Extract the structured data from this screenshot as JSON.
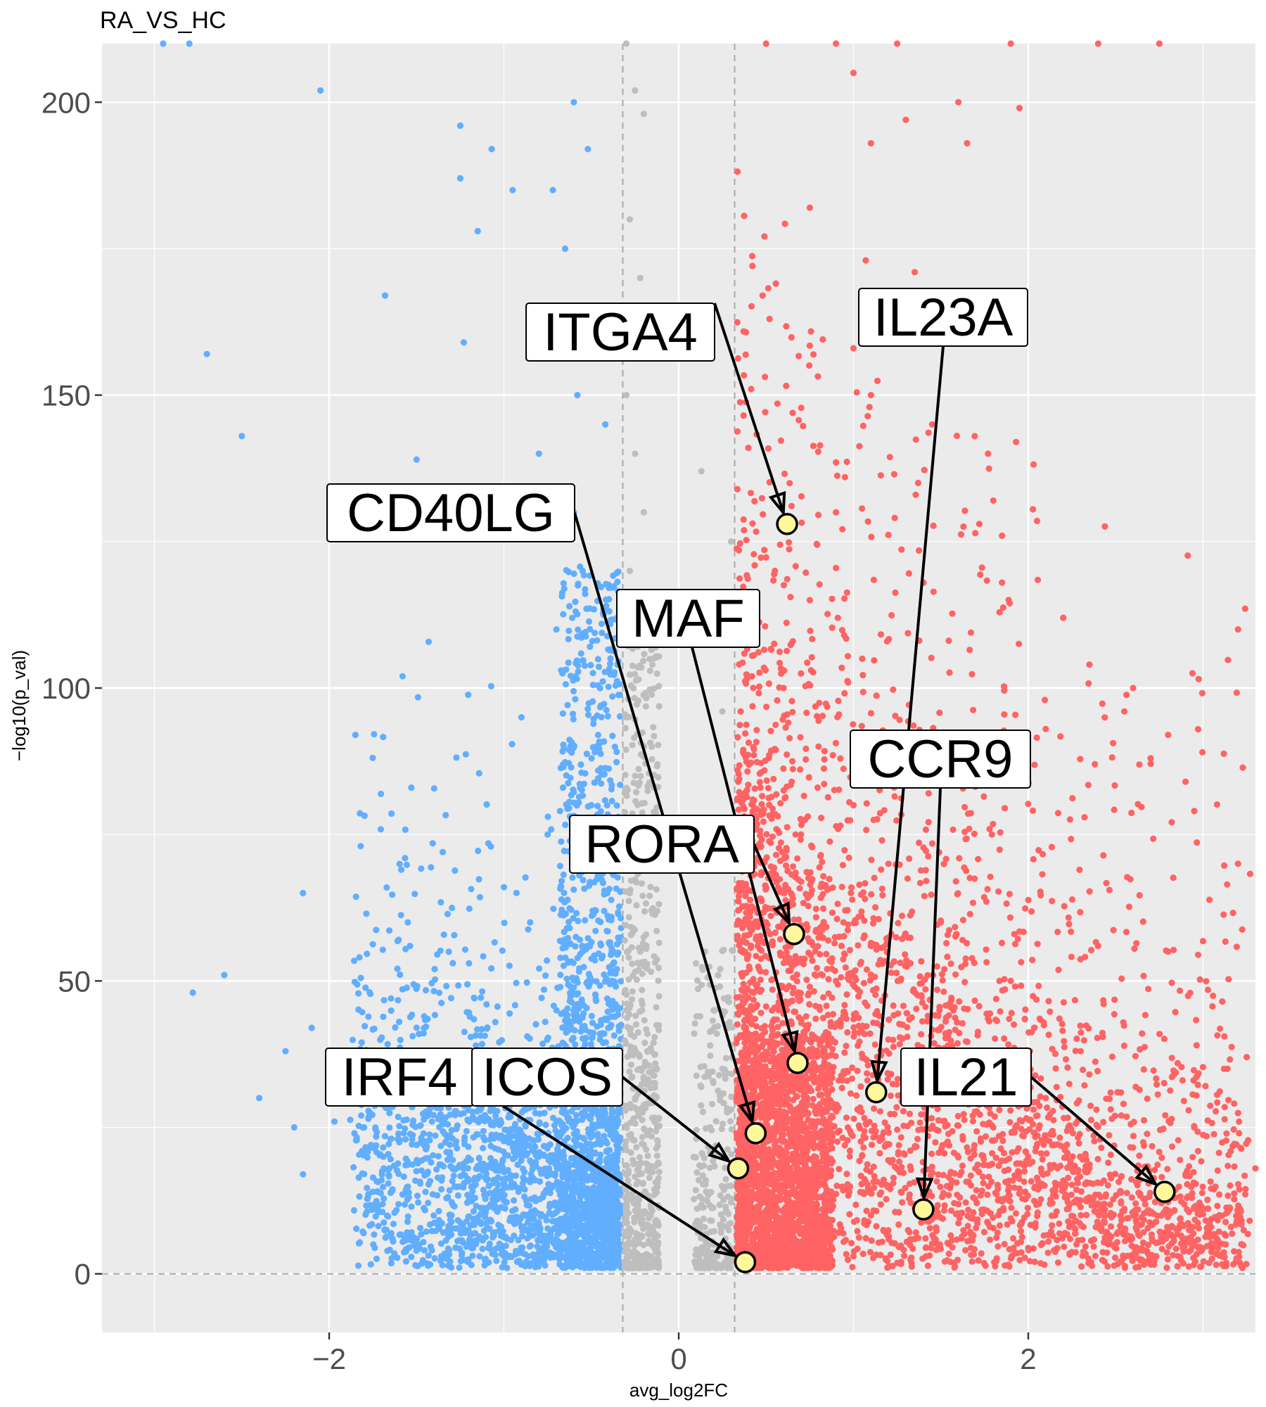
{
  "chart_data": {
    "type": "scatter",
    "title": "RA_VS_HC",
    "xlabel": "avg_log2FC",
    "ylabel": "−log10(p_val)",
    "xlim": [
      -3.3,
      3.3
    ],
    "ylim": [
      -10,
      210
    ],
    "x_ticks": [
      -2,
      0,
      2
    ],
    "x_tick_labels": [
      "−2",
      "0",
      "2"
    ],
    "y_ticks": [
      0,
      50,
      100,
      150,
      200
    ],
    "y_tick_labels": [
      "0",
      "50",
      "100",
      "150",
      "200"
    ],
    "grid": true,
    "thresholds": {
      "log2fc": [
        -0.32,
        0.32
      ],
      "pval": 0
    },
    "colors": {
      "down": "#61AEFF",
      "ns": "#BEBEBE",
      "up": "#FF6363",
      "panel": "#EBEBEB",
      "highlight_fill": "#FFF89A"
    },
    "sample_points": {
      "down": [
        [
          -2.95,
          210
        ],
        [
          -2.8,
          210
        ],
        [
          -2.05,
          202
        ],
        [
          -1.25,
          196
        ],
        [
          -1.07,
          192
        ],
        [
          -1.25,
          187
        ],
        [
          -0.95,
          185
        ],
        [
          -1.15,
          178
        ],
        [
          -1.68,
          167
        ],
        [
          -2.7,
          157
        ],
        [
          -1.23,
          159
        ],
        [
          -2.5,
          143
        ],
        [
          -1.5,
          139
        ],
        [
          -1.58,
          102
        ],
        [
          -1.85,
          92
        ],
        [
          -1.53,
          83
        ],
        [
          -1.82,
          73
        ],
        [
          -1.35,
          72
        ],
        [
          -2.15,
          65
        ],
        [
          -1.55,
          60
        ],
        [
          -2.6,
          51
        ],
        [
          -2.78,
          48
        ],
        [
          -2.1,
          42
        ],
        [
          -2.25,
          38
        ],
        [
          -2.4,
          30
        ],
        [
          -2.2,
          25
        ],
        [
          -2.15,
          17
        ],
        [
          -1.97,
          26
        ],
        [
          -1.2,
          53
        ],
        [
          -1.1,
          46
        ],
        [
          -0.8,
          140
        ],
        [
          -0.6,
          130
        ],
        [
          -0.55,
          120
        ],
        [
          -0.7,
          110
        ],
        [
          -0.45,
          100
        ],
        [
          -0.9,
          95
        ],
        [
          -0.62,
          90
        ],
        [
          -0.5,
          80
        ],
        [
          -0.75,
          75
        ],
        [
          -0.4,
          70
        ],
        [
          -1.0,
          66
        ],
        [
          -0.85,
          60
        ],
        [
          -0.55,
          55
        ],
        [
          -0.38,
          50
        ],
        [
          -0.7,
          45
        ],
        [
          -0.45,
          40
        ],
        [
          -1.3,
          38
        ],
        [
          -0.6,
          35
        ],
        [
          -0.95,
          30
        ],
        [
          -0.5,
          28
        ],
        [
          -0.36,
          24
        ],
        [
          -1.5,
          22
        ],
        [
          -0.8,
          20
        ],
        [
          -1.1,
          18
        ],
        [
          -0.55,
          15
        ],
        [
          -0.4,
          12
        ],
        [
          -1.7,
          16
        ],
        [
          -1.3,
          10
        ],
        [
          -0.9,
          8
        ],
        [
          -0.6,
          5
        ],
        [
          -0.35,
          3
        ],
        [
          -1.0,
          3
        ],
        [
          -0.7,
          160
        ],
        [
          -0.65,
          175
        ],
        [
          -0.6,
          200
        ],
        [
          -0.72,
          185
        ],
        [
          -0.52,
          192
        ],
        [
          -0.48,
          165
        ],
        [
          -0.58,
          150
        ],
        [
          -0.42,
          145
        ]
      ],
      "ns": [
        [
          -0.3,
          210
        ],
        [
          -0.25,
          202
        ],
        [
          -0.2,
          198
        ],
        [
          -0.28,
          180
        ],
        [
          -0.22,
          170
        ],
        [
          -0.3,
          150
        ],
        [
          -0.25,
          140
        ],
        [
          -0.2,
          130
        ],
        [
          -0.28,
          120
        ],
        [
          -0.15,
          104
        ],
        [
          -0.3,
          95
        ],
        [
          -0.25,
          85
        ],
        [
          -0.2,
          75
        ],
        [
          -0.28,
          65
        ],
        [
          -0.22,
          55
        ],
        [
          -0.3,
          45
        ],
        [
          -0.18,
          38
        ],
        [
          -0.25,
          30
        ],
        [
          -0.2,
          22
        ],
        [
          -0.3,
          15
        ],
        [
          -0.15,
          8
        ],
        [
          -0.25,
          3
        ],
        [
          0.15,
          55
        ],
        [
          0.2,
          45
        ],
        [
          0.25,
          35
        ],
        [
          0.18,
          25
        ],
        [
          0.28,
          15
        ],
        [
          0.12,
          8
        ],
        [
          0.22,
          3
        ],
        [
          0.13,
          137
        ],
        [
          0.25,
          96
        ],
        [
          0.3,
          125
        ],
        [
          0.2,
          5
        ],
        [
          0.1,
          2
        ]
      ],
      "up": [
        [
          0.5,
          210
        ],
        [
          0.9,
          210
        ],
        [
          1.25,
          210
        ],
        [
          1.9,
          210
        ],
        [
          2.4,
          210
        ],
        [
          2.75,
          210
        ],
        [
          1.0,
          205
        ],
        [
          1.95,
          199
        ],
        [
          1.6,
          200
        ],
        [
          1.3,
          197
        ],
        [
          1.65,
          193
        ],
        [
          1.1,
          193
        ],
        [
          0.75,
          182
        ],
        [
          1.07,
          173
        ],
        [
          1.35,
          171
        ],
        [
          1.18,
          166
        ],
        [
          0.48,
          167
        ],
        [
          0.52,
          163
        ],
        [
          1.12,
          161
        ],
        [
          1.0,
          158
        ],
        [
          1.37,
          135
        ],
        [
          1.1,
          150
        ],
        [
          1.45,
          145
        ],
        [
          1.77,
          140
        ],
        [
          1.93,
          142
        ],
        [
          1.8,
          132
        ],
        [
          1.72,
          128
        ],
        [
          1.85,
          126
        ],
        [
          0.9,
          130
        ],
        [
          1.4,
          118
        ],
        [
          1.85,
          118
        ],
        [
          2.2,
          112
        ],
        [
          3.2,
          110
        ],
        [
          2.35,
          104
        ],
        [
          2.55,
          96
        ],
        [
          2.1,
          93
        ],
        [
          2.6,
          100
        ],
        [
          2.8,
          92
        ],
        [
          2.7,
          88
        ],
        [
          2.9,
          84
        ],
        [
          2.95,
          79
        ],
        [
          3.2,
          70
        ],
        [
          2.8,
          55
        ],
        [
          3.12,
          35
        ],
        [
          3.25,
          37
        ],
        [
          3.3,
          18
        ],
        [
          2.95,
          25
        ],
        [
          2.9,
          17
        ],
        [
          2.3,
          38
        ],
        [
          2.1,
          30
        ],
        [
          1.9,
          50
        ],
        [
          1.5,
          60
        ],
        [
          1.2,
          70
        ],
        [
          1.0,
          80
        ],
        [
          0.8,
          90
        ],
        [
          0.6,
          100
        ],
        [
          0.7,
          75
        ],
        [
          0.5,
          60
        ],
        [
          0.4,
          45
        ],
        [
          0.35,
          30
        ],
        [
          0.6,
          40
        ],
        [
          0.9,
          50
        ],
        [
          1.2,
          40
        ],
        [
          1.5,
          30
        ],
        [
          1.8,
          25
        ],
        [
          2.0,
          20
        ],
        [
          2.2,
          15
        ],
        [
          2.4,
          12
        ],
        [
          2.6,
          10
        ],
        [
          0.5,
          20
        ],
        [
          0.8,
          15
        ],
        [
          1.1,
          10
        ],
        [
          0.4,
          10
        ],
        [
          0.7,
          5
        ],
        [
          1.0,
          3
        ],
        [
          0.35,
          3
        ],
        [
          0.45,
          110
        ],
        [
          0.55,
          120
        ],
        [
          0.75,
          115
        ],
        [
          1.05,
          105
        ]
      ]
    },
    "highlighted": [
      {
        "gene": "ITGA4",
        "x": 0.62,
        "y": 128
      },
      {
        "gene": "IL23A",
        "x": 1.13,
        "y": 31
      },
      {
        "gene": "CD40LG",
        "x": 0.44,
        "y": 24
      },
      {
        "gene": "MAF",
        "x": 0.68,
        "y": 36
      },
      {
        "gene": "CCR9",
        "x": 1.4,
        "y": 11
      },
      {
        "gene": "RORA",
        "x": 0.66,
        "y": 58
      },
      {
        "gene": "IRF4",
        "x": 0.38,
        "y": 2
      },
      {
        "gene": "ICOS",
        "x": 0.34,
        "y": 18
      },
      {
        "gene": "IL21",
        "x": 2.78,
        "y": 14
      }
    ]
  }
}
